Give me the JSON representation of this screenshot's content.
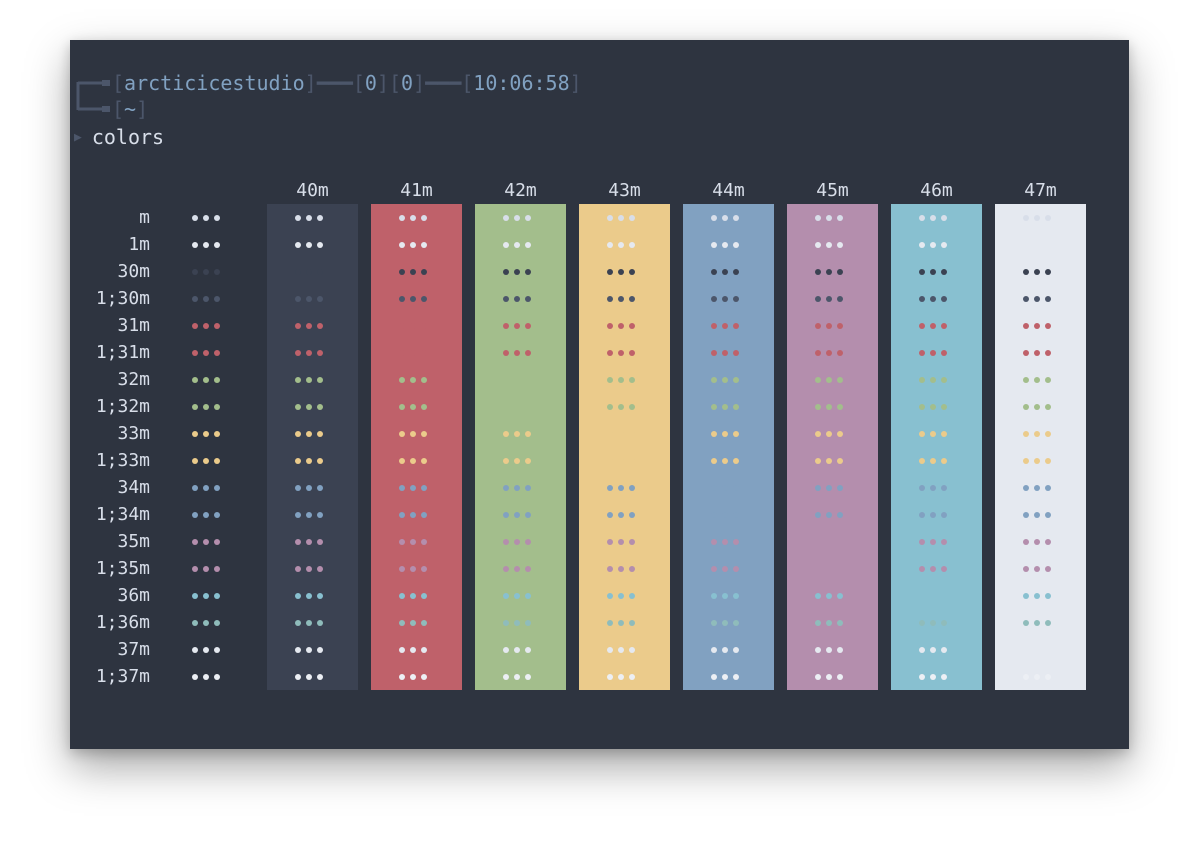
{
  "prompt": {
    "user": "arcticicestudio",
    "counters": [
      "0",
      "0"
    ],
    "time": "10:06:58",
    "cwd": "~",
    "command": "colors",
    "arrow": "▶"
  },
  "palette": {
    "bg": "#2e3440",
    "fg": "#d8dee9",
    "dim": "#4c566a",
    "accent": "#81a1c1"
  },
  "columns": [
    {
      "label": "",
      "bg": null
    },
    {
      "label": "40m",
      "bg": "#3b4252"
    },
    {
      "label": "41m",
      "bg": "#bf616a"
    },
    {
      "label": "42m",
      "bg": "#a3be8c"
    },
    {
      "label": "43m",
      "bg": "#ebcb8b"
    },
    {
      "label": "44m",
      "bg": "#81a1c1"
    },
    {
      "label": "45m",
      "bg": "#b48ead"
    },
    {
      "label": "46m",
      "bg": "#88c0d0"
    },
    {
      "label": "47m",
      "bg": "#e5e9f0"
    }
  ],
  "rows": [
    {
      "label": "m",
      "fg": "#d8dee9"
    },
    {
      "label": "1m",
      "fg": "#e5e9f0"
    },
    {
      "label": "30m",
      "fg": "#3b4252"
    },
    {
      "label": "1;30m",
      "fg": "#4c566a"
    },
    {
      "label": "31m",
      "fg": "#bf616a"
    },
    {
      "label": "1;31m",
      "fg": "#bf616a"
    },
    {
      "label": "32m",
      "fg": "#a3be8c"
    },
    {
      "label": "1;32m",
      "fg": "#a3be8c"
    },
    {
      "label": "33m",
      "fg": "#ebcb8b"
    },
    {
      "label": "1;33m",
      "fg": "#ebcb8b"
    },
    {
      "label": "34m",
      "fg": "#81a1c1"
    },
    {
      "label": "1;34m",
      "fg": "#81a1c1"
    },
    {
      "label": "35m",
      "fg": "#b48ead"
    },
    {
      "label": "1;35m",
      "fg": "#b48ead"
    },
    {
      "label": "36m",
      "fg": "#88c0d0"
    },
    {
      "label": "1;36m",
      "fg": "#8fbcbb"
    },
    {
      "label": "37m",
      "fg": "#e5e9f0"
    },
    {
      "label": "1;37m",
      "fg": "#eceff4"
    }
  ]
}
